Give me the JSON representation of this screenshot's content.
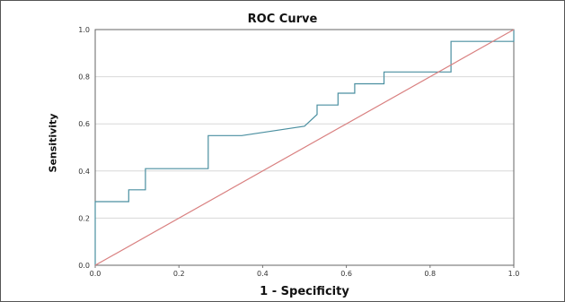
{
  "chart_data": {
    "type": "line",
    "title": "ROC Curve",
    "xlabel": "1 - Specificity",
    "ylabel": "Sensitivity",
    "xlim": [
      0.0,
      1.0
    ],
    "ylim": [
      0.0,
      1.0
    ],
    "grid": "horizontal",
    "xticks": [
      "0.0",
      "0.2",
      "0.4",
      "0.6",
      "0.8",
      "1.0"
    ],
    "yticks": [
      "0.0",
      "0.2",
      "0.4",
      "0.6",
      "0.8",
      "1.0"
    ],
    "series": [
      {
        "color": "#4a8fa0",
        "x": [
          0.0,
          0.0,
          0.08,
          0.08,
          0.12,
          0.12,
          0.27,
          0.27,
          0.35,
          0.5,
          0.53,
          0.53,
          0.58,
          0.58,
          0.62,
          0.62,
          0.69,
          0.69,
          0.84,
          0.85,
          0.85,
          0.94,
          1.0,
          1.0
        ],
        "y": [
          0.0,
          0.27,
          0.27,
          0.32,
          0.32,
          0.41,
          0.41,
          0.55,
          0.55,
          0.59,
          0.64,
          0.68,
          0.68,
          0.73,
          0.73,
          0.77,
          0.77,
          0.82,
          0.82,
          0.82,
          0.95,
          0.95,
          0.95,
          1.0
        ]
      },
      {
        "color": "#d98080",
        "x": [
          0.0,
          1.0
        ],
        "y": [
          0.0,
          1.0
        ]
      }
    ]
  }
}
